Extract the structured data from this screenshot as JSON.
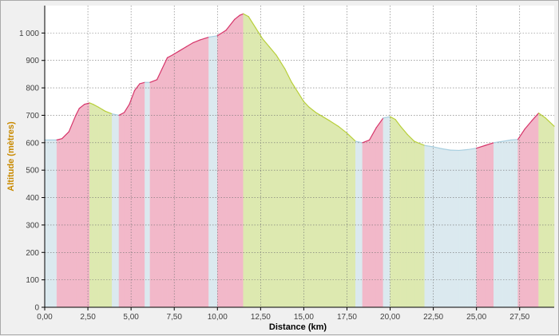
{
  "chart_data": {
    "type": "area",
    "xlabel": "Distance (km)",
    "ylabel": "Altitude (mètres)",
    "xlim": [
      0,
      29.5
    ],
    "ylim": [
      0,
      1100
    ],
    "x_ticks": [
      0,
      2.5,
      5,
      7.5,
      10,
      12.5,
      15,
      17.5,
      20,
      22.5,
      25,
      27.5
    ],
    "x_tick_labels": [
      "0,00",
      "2,50",
      "5,00",
      "7,50",
      "10,00",
      "12,50",
      "15,00",
      "17,50",
      "20,00",
      "22,50",
      "25,00",
      "27,50"
    ],
    "y_ticks": [
      0,
      100,
      200,
      300,
      400,
      500,
      600,
      700,
      800,
      900,
      1000
    ],
    "y_tick_labels": [
      "0",
      "100",
      "200",
      "300",
      "400",
      "500",
      "600",
      "700",
      "800",
      "900",
      "1 000"
    ],
    "grid": true,
    "grade_colors": {
      "climb": "#f2b8c9",
      "descent": "#dde9b0",
      "flat": "#dbe9ef",
      "climb_line": "#d6356a",
      "descent_line": "#b8cf3a",
      "flat_line": "#a9cfe0"
    },
    "profile": {
      "x": [
        0,
        0.7,
        1.0,
        1.4,
        1.8,
        2.0,
        2.3,
        2.6,
        2.8,
        3.1,
        3.5,
        3.9,
        4.3,
        4.6,
        4.9,
        5.2,
        5.5,
        5.8,
        6.1,
        6.5,
        6.8,
        7.1,
        7.4,
        7.8,
        8.2,
        8.6,
        9.0,
        9.5,
        10.0,
        10.5,
        11.0,
        11.3,
        11.5,
        11.8,
        12.2,
        12.6,
        13.0,
        13.4,
        13.9,
        14.3,
        14.7,
        15.0,
        15.3,
        15.7,
        16.1,
        16.5,
        17.0,
        17.5,
        18.0,
        18.4,
        18.8,
        19.2,
        19.6,
        20.0,
        20.3,
        20.6,
        21.0,
        21.4,
        22.0,
        22.5,
        23.0,
        23.5,
        24.0,
        24.5,
        25.0,
        25.5,
        26.0,
        26.5,
        27.0,
        27.4,
        27.8,
        28.2,
        28.6,
        29.0,
        29.5
      ],
      "y": [
        610,
        610,
        615,
        640,
        700,
        725,
        740,
        745,
        740,
        730,
        715,
        705,
        700,
        710,
        740,
        790,
        815,
        820,
        820,
        830,
        870,
        910,
        920,
        935,
        950,
        965,
        975,
        985,
        990,
        1010,
        1050,
        1065,
        1070,
        1060,
        1020,
        980,
        950,
        920,
        870,
        820,
        780,
        750,
        730,
        710,
        695,
        680,
        660,
        635,
        605,
        600,
        610,
        655,
        690,
        695,
        685,
        660,
        630,
        605,
        590,
        585,
        578,
        573,
        572,
        575,
        580,
        590,
        600,
        605,
        610,
        612,
        650,
        680,
        708,
        690,
        660
      ]
    }
  }
}
